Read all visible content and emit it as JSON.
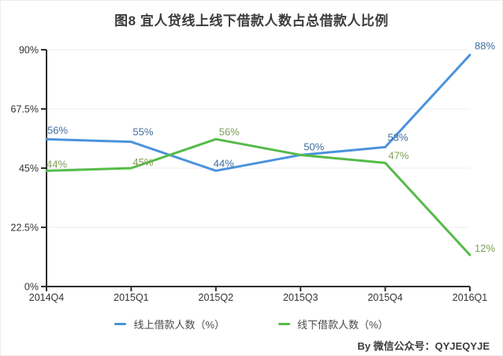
{
  "page": {
    "title": "图8  宜人贷线上线下借款人数占总借款人比例",
    "footer_credit": "By 微信公众号：QYJEQYJE"
  },
  "chart_data": {
    "type": "line",
    "title": "图8  宜人贷线上线下借款人数占总借款人比例",
    "categories": [
      "2014Q4",
      "2015Q1",
      "2015Q2",
      "2015Q3",
      "2015Q4",
      "2016Q1"
    ],
    "series": [
      {
        "name": "线上借款人数（%）",
        "color": "#4b93db",
        "label_color": "#3f6d9f",
        "values": [
          56,
          55,
          44,
          50,
          53,
          88
        ],
        "point_labels": [
          "56%",
          "55%",
          "44%",
          "50%",
          "53%",
          "88%"
        ]
      },
      {
        "name": "线下借款人数（%）",
        "color": "#55bb49",
        "label_color": "#7f9e54",
        "values": [
          44,
          45,
          56,
          50,
          47,
          12
        ],
        "point_labels": [
          "44%",
          "45%",
          "56%",
          null,
          "47%",
          "12%"
        ]
      }
    ],
    "ylim": [
      0,
      90
    ],
    "y_ticks": [
      0,
      22.5,
      45,
      67.5,
      90
    ],
    "y_tick_labels": [
      "0%",
      "22.5%",
      "45%",
      "67.5%",
      "90%"
    ],
    "xlabel": "",
    "ylabel": "",
    "grid": true,
    "legend_position": "bottom",
    "axis_color": "#2e2e2e",
    "grid_color": "#ededed",
    "tick_label_color": "#333333"
  }
}
